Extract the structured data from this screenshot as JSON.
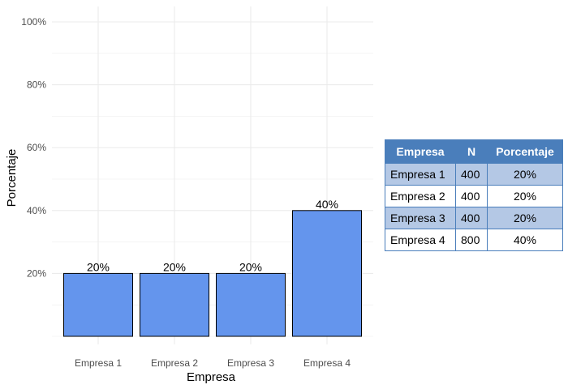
{
  "chart_data": {
    "type": "bar",
    "title": "",
    "xlabel": "Empresa",
    "ylabel": "Porcentaje",
    "categories": [
      "Empresa 1",
      "Empresa 2",
      "Empresa 3",
      "Empresa 4"
    ],
    "values": [
      20,
      20,
      20,
      40
    ],
    "data_labels": [
      "20%",
      "20%",
      "20%",
      "40%"
    ],
    "ylim": [
      0,
      100
    ],
    "yticks": [
      20,
      40,
      60,
      80,
      100
    ],
    "ytick_labels": [
      "20%",
      "40%",
      "60%",
      "80%",
      "100%"
    ],
    "grid": true,
    "bar_color": "#6495ed",
    "bar_edge_color": "#000000"
  },
  "table": {
    "headers": [
      "Empresa",
      "N",
      "Porcentaje"
    ],
    "rows": [
      {
        "empresa": "Empresa 1",
        "n": "400",
        "porcentaje": "20%"
      },
      {
        "empresa": "Empresa 2",
        "n": "400",
        "porcentaje": "20%"
      },
      {
        "empresa": "Empresa 3",
        "n": "400",
        "porcentaje": "20%"
      },
      {
        "empresa": "Empresa 4",
        "n": "800",
        "porcentaje": "40%"
      }
    ],
    "header_color": "#4a7ebb",
    "shade_color": "#b4c8e5"
  }
}
